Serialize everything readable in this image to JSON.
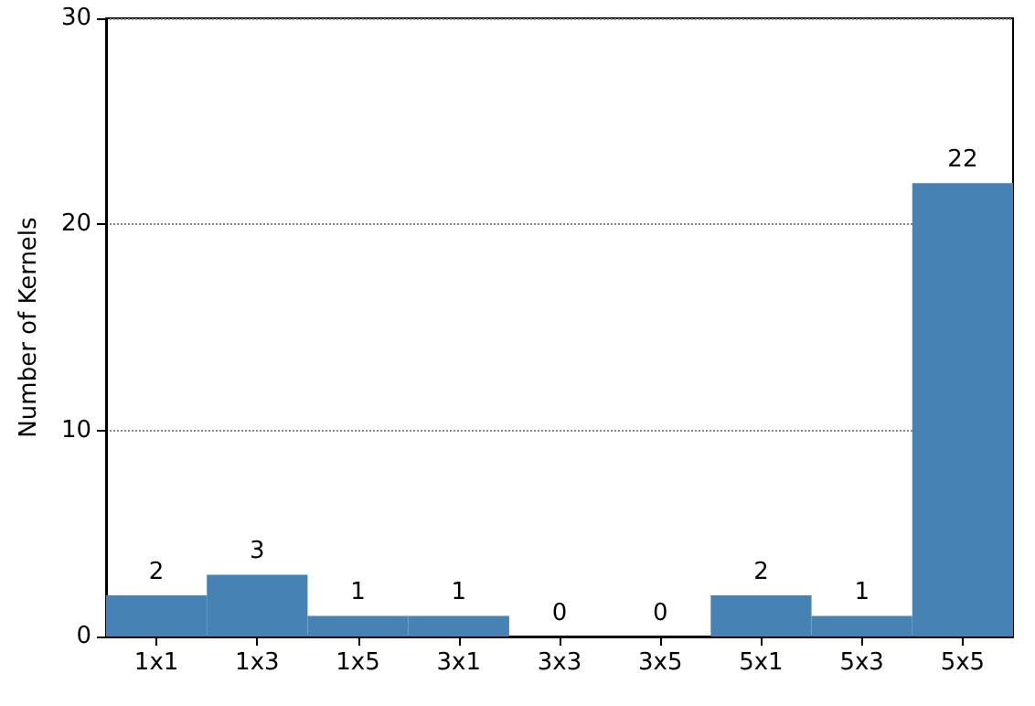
{
  "chart_data": {
    "type": "bar",
    "ylabel": "Number of Kernels",
    "categories": [
      "1x1",
      "1x3",
      "1x5",
      "3x1",
      "3x3",
      "3x5",
      "5x1",
      "5x3",
      "5x5"
    ],
    "values": [
      2,
      3,
      1,
      1,
      0,
      0,
      2,
      1,
      22
    ],
    "color": "#4682b4",
    "ylim": [
      0,
      30
    ],
    "yticks": [
      0,
      10,
      20,
      30
    ],
    "grid": "y",
    "data_labels": true
  }
}
